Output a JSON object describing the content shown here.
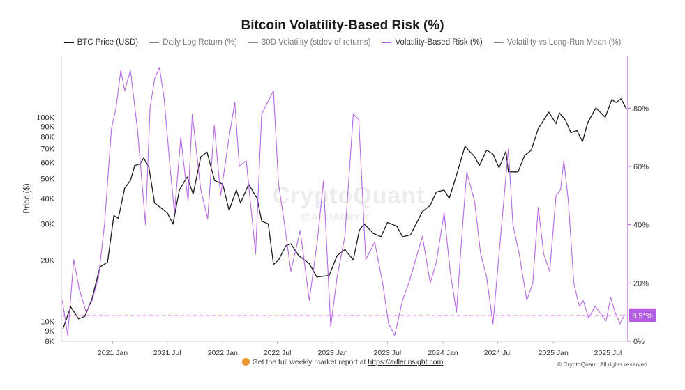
{
  "title": "Bitcoin Volatility-Based Risk (%)",
  "legend": [
    {
      "label": "BTC Price (USD)",
      "color": "#1a1a1a",
      "active": true
    },
    {
      "label": "Daily Log Return (%)",
      "color": "#8a8a8a",
      "active": false
    },
    {
      "label": "30D Volatility (stdev of returns)",
      "color": "#8a8a8a",
      "active": false
    },
    {
      "label": "Volatility-Based Risk (%)",
      "color": "#b45fe0",
      "active": true
    },
    {
      "label": "Volatility vs Long-Run Mean (%)",
      "color": "#8a8a8a",
      "active": false
    }
  ],
  "footer": {
    "text": "Get the full weekly market report at ",
    "link": "https://adlerinsight.com"
  },
  "copyright": "© CryptoQuant. All rights reserved",
  "watermark": {
    "line1": "CryptoQuant",
    "line2": "@AxelAdlerJr"
  },
  "chart_data": {
    "type": "line",
    "title": "Bitcoin Volatility-Based Risk (%)",
    "x_range": [
      "2020-07-15",
      "2025-09-05"
    ],
    "x_ticks": [
      {
        "date": "2021-01-01",
        "label": "2021 Jan"
      },
      {
        "date": "2021-07-01",
        "label": "2021 Jul"
      },
      {
        "date": "2022-01-01",
        "label": "2022 Jan"
      },
      {
        "date": "2022-07-01",
        "label": "2022 Jul"
      },
      {
        "date": "2023-01-01",
        "label": "2023 Jan"
      },
      {
        "date": "2023-07-01",
        "label": "2023 Jul"
      },
      {
        "date": "2024-01-01",
        "label": "2024 Jan"
      },
      {
        "date": "2024-07-01",
        "label": "2024 Jul"
      },
      {
        "date": "2025-01-01",
        "label": "2025 Jan"
      },
      {
        "date": "2025-07-01",
        "label": "2025 Jul"
      }
    ],
    "y_left": {
      "label": "Price ($)",
      "scale": "log",
      "range": [
        8000,
        200000
      ],
      "ticks": [
        {
          "value": 8000,
          "label": "8K"
        },
        {
          "value": 9000,
          "label": "9K"
        },
        {
          "value": 10000,
          "label": "10K"
        },
        {
          "value": 20000,
          "label": "20K"
        },
        {
          "value": 30000,
          "label": "30K"
        },
        {
          "value": 40000,
          "label": "40K"
        },
        {
          "value": 50000,
          "label": "50K"
        },
        {
          "value": 60000,
          "label": "60K"
        },
        {
          "value": 70000,
          "label": "70K"
        },
        {
          "value": 80000,
          "label": "80K"
        },
        {
          "value": 90000,
          "label": "90K"
        },
        {
          "value": 100000,
          "label": "100K"
        }
      ]
    },
    "y_right": {
      "label": "",
      "range": [
        0,
        98
      ],
      "ticks": [
        {
          "value": 0,
          "label": "0%"
        },
        {
          "value": 20,
          "label": "20%"
        },
        {
          "value": 40,
          "label": "40%"
        },
        {
          "value": 60,
          "label": "60%"
        },
        {
          "value": 80,
          "label": "80%"
        }
      ]
    },
    "reference_line": {
      "value": 8.9,
      "label": "8.9*%",
      "color": "#b45fe0"
    },
    "series": [
      {
        "name": "BTC Price (USD)",
        "axis": "left",
        "color": "#1a1a1a",
        "points": [
          [
            "2020-07-20",
            9200
          ],
          [
            "2020-08-15",
            11800
          ],
          [
            "2020-09-10",
            10300
          ],
          [
            "2020-10-01",
            10600
          ],
          [
            "2020-10-25",
            13000
          ],
          [
            "2020-11-20",
            18500
          ],
          [
            "2020-12-15",
            19500
          ],
          [
            "2021-01-05",
            33000
          ],
          [
            "2021-01-20",
            32000
          ],
          [
            "2021-02-10",
            45000
          ],
          [
            "2021-03-01",
            49000
          ],
          [
            "2021-03-15",
            58000
          ],
          [
            "2021-04-01",
            59000
          ],
          [
            "2021-04-14",
            63000
          ],
          [
            "2021-05-01",
            57000
          ],
          [
            "2021-05-20",
            38000
          ],
          [
            "2021-06-10",
            36000
          ],
          [
            "2021-07-01",
            34000
          ],
          [
            "2021-07-20",
            30000
          ],
          [
            "2021-08-10",
            44000
          ],
          [
            "2021-09-05",
            51000
          ],
          [
            "2021-09-25",
            42000
          ],
          [
            "2021-10-20",
            64000
          ],
          [
            "2021-11-10",
            67500
          ],
          [
            "2021-12-05",
            49000
          ],
          [
            "2022-01-01",
            47000
          ],
          [
            "2022-01-22",
            35000
          ],
          [
            "2022-02-15",
            44000
          ],
          [
            "2022-03-01",
            38000
          ],
          [
            "2022-03-28",
            47000
          ],
          [
            "2022-04-25",
            40000
          ],
          [
            "2022-05-10",
            31000
          ],
          [
            "2022-06-01",
            30000
          ],
          [
            "2022-06-18",
            19000
          ],
          [
            "2022-07-05",
            20000
          ],
          [
            "2022-07-30",
            23500
          ],
          [
            "2022-08-15",
            24000
          ],
          [
            "2022-09-10",
            21000
          ],
          [
            "2022-10-15",
            19200
          ],
          [
            "2022-11-09",
            16500
          ],
          [
            "2022-12-20",
            16800
          ],
          [
            "2023-01-15",
            21000
          ],
          [
            "2023-02-10",
            22500
          ],
          [
            "2023-03-10",
            20000
          ],
          [
            "2023-03-30",
            28000
          ],
          [
            "2023-04-15",
            30000
          ],
          [
            "2023-05-15",
            27000
          ],
          [
            "2023-06-10",
            26000
          ],
          [
            "2023-07-01",
            30500
          ],
          [
            "2023-08-01",
            29300
          ],
          [
            "2023-08-20",
            26000
          ],
          [
            "2023-09-15",
            26500
          ],
          [
            "2023-10-25",
            34500
          ],
          [
            "2023-11-20",
            37000
          ],
          [
            "2023-12-10",
            43000
          ],
          [
            "2024-01-05",
            44000
          ],
          [
            "2024-01-22",
            40000
          ],
          [
            "2024-02-15",
            52000
          ],
          [
            "2024-03-14",
            72000
          ],
          [
            "2024-04-15",
            64000
          ],
          [
            "2024-05-01",
            58000
          ],
          [
            "2024-05-25",
            69000
          ],
          [
            "2024-06-15",
            66000
          ],
          [
            "2024-07-05",
            56500
          ],
          [
            "2024-07-28",
            68000
          ],
          [
            "2024-08-05",
            54000
          ],
          [
            "2024-09-06",
            54000
          ],
          [
            "2024-09-28",
            65000
          ],
          [
            "2024-10-20",
            69000
          ],
          [
            "2024-11-12",
            88000
          ],
          [
            "2024-12-17",
            106000
          ],
          [
            "2025-01-10",
            93000
          ],
          [
            "2025-01-21",
            105000
          ],
          [
            "2025-02-10",
            97000
          ],
          [
            "2025-02-28",
            84000
          ],
          [
            "2025-03-20",
            86000
          ],
          [
            "2025-04-08",
            76000
          ],
          [
            "2025-04-25",
            94000
          ],
          [
            "2025-05-22",
            111000
          ],
          [
            "2025-06-22",
            100000
          ],
          [
            "2025-07-14",
            122000
          ],
          [
            "2025-07-28",
            118000
          ],
          [
            "2025-08-14",
            123000
          ],
          [
            "2025-09-01",
            109000
          ]
        ]
      },
      {
        "name": "Volatility-Based Risk (%)",
        "axis": "right",
        "color": "#b45fe0",
        "points": [
          [
            "2020-07-18",
            14
          ],
          [
            "2020-08-05",
            2
          ],
          [
            "2020-08-25",
            28
          ],
          [
            "2020-09-12",
            18
          ],
          [
            "2020-10-05",
            10
          ],
          [
            "2020-10-25",
            14
          ],
          [
            "2020-11-15",
            22
          ],
          [
            "2020-12-05",
            40
          ],
          [
            "2020-12-28",
            73
          ],
          [
            "2021-01-12",
            80
          ],
          [
            "2021-01-28",
            93
          ],
          [
            "2021-02-10",
            86
          ],
          [
            "2021-03-01",
            93
          ],
          [
            "2021-03-25",
            72
          ],
          [
            "2021-04-20",
            40
          ],
          [
            "2021-05-05",
            80
          ],
          [
            "2021-05-20",
            90
          ],
          [
            "2021-06-05",
            94
          ],
          [
            "2021-06-20",
            84
          ],
          [
            "2021-07-10",
            60
          ],
          [
            "2021-07-25",
            44
          ],
          [
            "2021-08-15",
            70
          ],
          [
            "2021-09-08",
            48
          ],
          [
            "2021-09-22",
            78
          ],
          [
            "2021-10-20",
            52
          ],
          [
            "2021-11-12",
            42
          ],
          [
            "2021-12-04",
            74
          ],
          [
            "2021-12-25",
            50
          ],
          [
            "2022-01-22",
            70
          ],
          [
            "2022-02-10",
            82
          ],
          [
            "2022-02-25",
            60
          ],
          [
            "2022-03-20",
            62
          ],
          [
            "2022-04-20",
            30
          ],
          [
            "2022-05-10",
            78
          ],
          [
            "2022-05-30",
            82
          ],
          [
            "2022-06-18",
            86
          ],
          [
            "2022-07-05",
            54
          ],
          [
            "2022-07-25",
            40
          ],
          [
            "2022-08-15",
            24
          ],
          [
            "2022-09-15",
            38
          ],
          [
            "2022-10-15",
            14
          ],
          [
            "2022-11-10",
            34
          ],
          [
            "2022-12-01",
            55
          ],
          [
            "2022-12-25",
            5
          ],
          [
            "2023-01-15",
            22
          ],
          [
            "2023-02-10",
            36
          ],
          [
            "2023-03-10",
            78
          ],
          [
            "2023-03-28",
            76
          ],
          [
            "2023-04-20",
            28
          ],
          [
            "2023-05-20",
            34
          ],
          [
            "2023-06-15",
            20
          ],
          [
            "2023-07-05",
            6
          ],
          [
            "2023-07-25",
            2
          ],
          [
            "2023-08-20",
            14
          ],
          [
            "2023-09-10",
            20
          ],
          [
            "2023-10-25",
            36
          ],
          [
            "2023-11-20",
            20
          ],
          [
            "2023-12-10",
            27
          ],
          [
            "2024-01-05",
            44
          ],
          [
            "2024-01-25",
            24
          ],
          [
            "2024-02-15",
            10
          ],
          [
            "2024-03-05",
            38
          ],
          [
            "2024-03-20",
            58
          ],
          [
            "2024-04-15",
            48
          ],
          [
            "2024-05-05",
            30
          ],
          [
            "2024-05-25",
            22
          ],
          [
            "2024-06-15",
            6
          ],
          [
            "2024-07-05",
            30
          ],
          [
            "2024-08-05",
            66
          ],
          [
            "2024-08-20",
            40
          ],
          [
            "2024-09-10",
            30
          ],
          [
            "2024-10-05",
            14
          ],
          [
            "2024-10-25",
            20
          ],
          [
            "2024-11-12",
            46
          ],
          [
            "2024-11-30",
            30
          ],
          [
            "2024-12-20",
            24
          ],
          [
            "2025-01-10",
            50
          ],
          [
            "2025-01-25",
            52
          ],
          [
            "2025-02-05",
            62
          ],
          [
            "2025-02-20",
            48
          ],
          [
            "2025-03-10",
            20
          ],
          [
            "2025-03-28",
            12
          ],
          [
            "2025-04-10",
            14
          ],
          [
            "2025-04-28",
            8
          ],
          [
            "2025-05-20",
            12
          ],
          [
            "2025-06-10",
            9
          ],
          [
            "2025-06-25",
            7
          ],
          [
            "2025-07-10",
            15
          ],
          [
            "2025-07-25",
            10
          ],
          [
            "2025-08-10",
            6
          ],
          [
            "2025-08-25",
            9
          ],
          [
            "2025-09-03",
            8.9
          ]
        ]
      }
    ]
  }
}
